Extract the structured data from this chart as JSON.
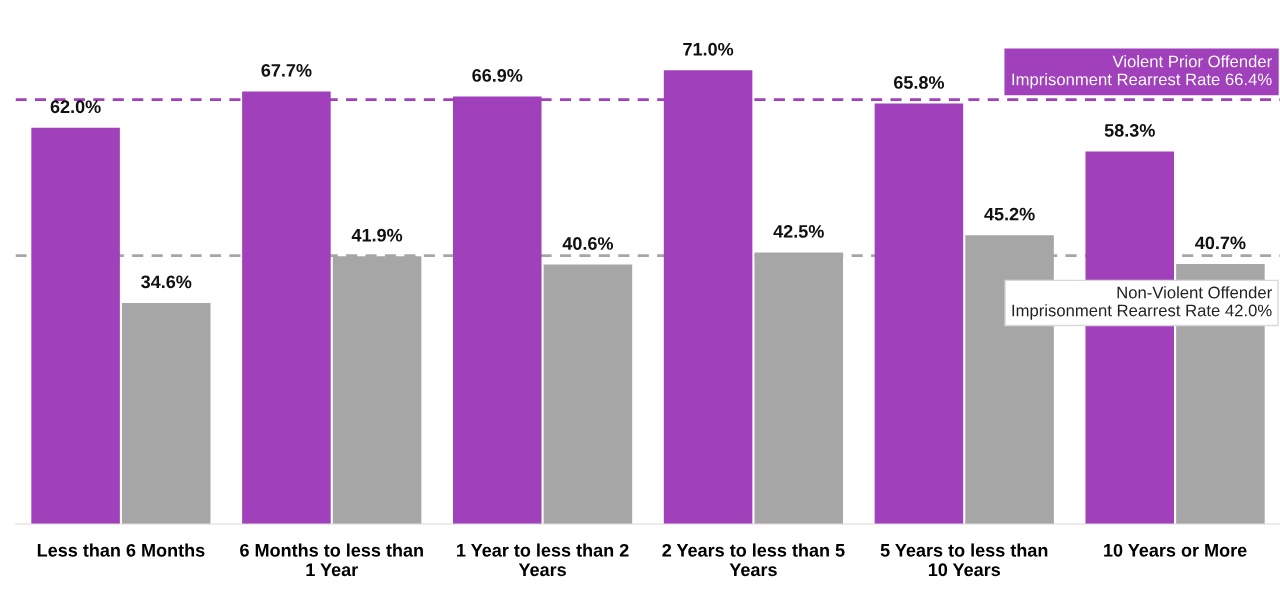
{
  "chart_data": {
    "type": "bar",
    "categories": [
      "Less than 6 Months",
      "6 Months to less than 1 Year",
      "1 Year to less than 2 Years",
      "2 Years to less than 5 Years",
      "5 Years to less than 10 Years",
      "10 Years or More"
    ],
    "series": [
      {
        "color": "#a041bb",
        "values": [
          62.0,
          67.7,
          66.9,
          71.0,
          65.8,
          58.3
        ],
        "value_labels": [
          "62.0%",
          "67.7%",
          "66.9%",
          "71.0%",
          "65.8%",
          "58.3%"
        ]
      },
      {
        "color": "#a6a6a6",
        "values": [
          34.6,
          41.9,
          40.6,
          42.5,
          45.2,
          40.7
        ],
        "value_labels": [
          "34.6%",
          "41.9%",
          "40.6%",
          "42.5%",
          "45.2%",
          "40.7%"
        ]
      }
    ],
    "tick_labels": "x",
    "grid": false,
    "legend": false,
    "ref_lines": [
      {
        "axis": "y",
        "value": 66.4,
        "label": "Violent Prior Offender Imprisonment Rearrest Rate 66.4%",
        "color": "#a041bb",
        "line_style": "dashed"
      },
      {
        "axis": "y",
        "value": 42.0,
        "label": "Non-Violent Offender Imprisonment Rearrest Rate 42.0%",
        "color": "#a6a6a6",
        "line_style": "dashed"
      }
    ]
  }
}
